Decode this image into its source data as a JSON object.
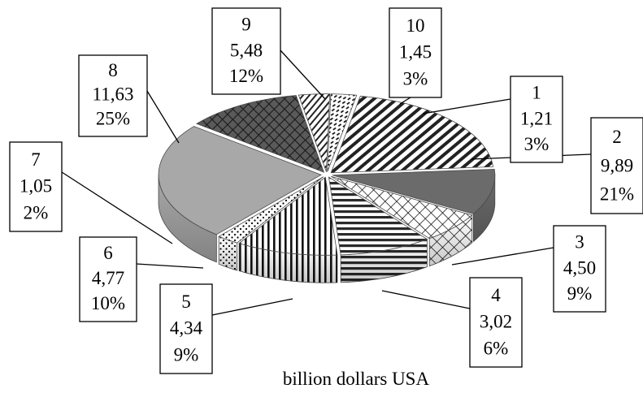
{
  "chart_data": {
    "type": "pie",
    "style": "3d-exploded",
    "title": "",
    "xlabel": "billion dollars USA",
    "categories": [
      "1",
      "2",
      "3",
      "4",
      "5",
      "6",
      "7",
      "8",
      "9",
      "10"
    ],
    "values": [
      1.21,
      9.89,
      4.5,
      3.02,
      4.34,
      4.77,
      1.05,
      11.63,
      5.48,
      1.45
    ],
    "value_labels": [
      "1,21",
      "9,89",
      "4,50",
      "3,02",
      "4,34",
      "4,77",
      "1,05",
      "11,63",
      "5,48",
      "1,45"
    ],
    "percent_labels": [
      "3%",
      "21%",
      "9%",
      "6%",
      "9%",
      "10%",
      "2%",
      "25%",
      "12%",
      "3%"
    ],
    "legend": "none",
    "slice_styles": [
      {
        "pattern": "dash-diag",
        "color": "#ffffff"
      },
      {
        "pattern": "diag-down-wide",
        "color": "#ffffff"
      },
      {
        "pattern": "solid",
        "color": "#6b6b6b"
      },
      {
        "pattern": "diamond-grid",
        "color": "#ffffff"
      },
      {
        "pattern": "horizontal",
        "color": "#ffffff"
      },
      {
        "pattern": "vertical",
        "color": "#ffffff"
      },
      {
        "pattern": "dots",
        "color": "#ffffff"
      },
      {
        "pattern": "solid",
        "color": "#a8a8a8"
      },
      {
        "pattern": "cross-diag",
        "color": "#555555"
      },
      {
        "pattern": "diag-up",
        "color": "#ffffff"
      }
    ]
  }
}
